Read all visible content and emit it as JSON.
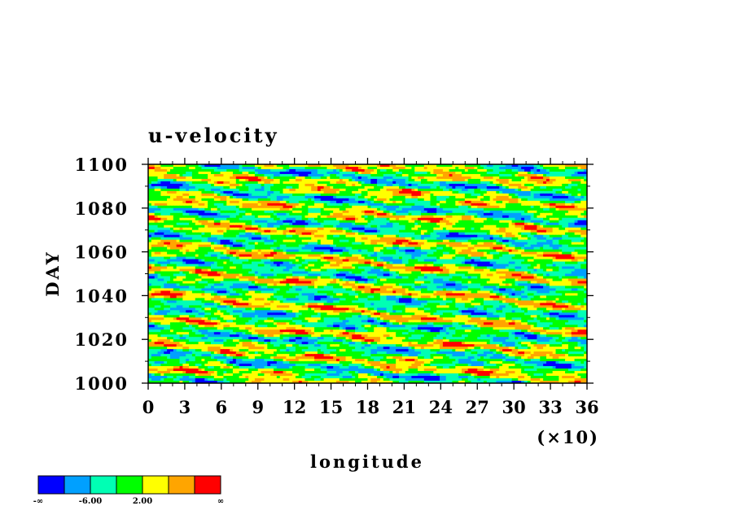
{
  "chart_data": {
    "type": "heatmap",
    "title": "u-velocity",
    "xlabel": "longitude",
    "ylabel": "DAY",
    "x_scale_note": "(×10)",
    "xlim": [
      0,
      36
    ],
    "ylim": [
      1000,
      1100
    ],
    "x_ticks": [
      0,
      3,
      6,
      9,
      12,
      15,
      18,
      21,
      24,
      27,
      30,
      33,
      36
    ],
    "y_ticks": [
      1000,
      1020,
      1040,
      1060,
      1080,
      1100
    ],
    "x_tick_labels": [
      "0",
      "3",
      "6",
      "9",
      "12",
      "15",
      "18",
      "21",
      "24",
      "27",
      "30",
      "33",
      "36"
    ],
    "y_tick_labels": [
      "1000",
      "1020",
      "1040",
      "1060",
      "1080",
      "1100"
    ],
    "grid": false,
    "colorbar": {
      "colors": [
        "#0000ff",
        "#00a0ff",
        "#00ffb4",
        "#00ff00",
        "#ffff00",
        "#ffa500",
        "#ff0000"
      ],
      "labels": [
        "-∞",
        "-6.00",
        "2.00",
        "∞"
      ]
    },
    "field_description": "u-velocity vs longitude and day"
  }
}
